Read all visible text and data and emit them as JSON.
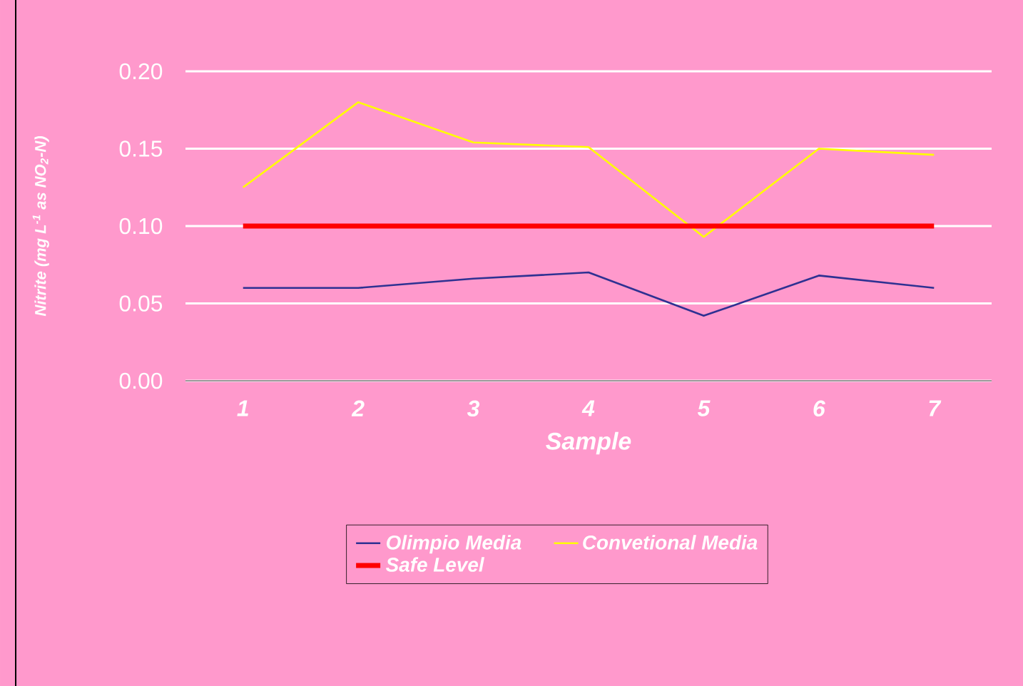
{
  "chart_data": {
    "type": "line",
    "xlabel": "Sample",
    "ylabel": "Nitrite (mg L$^{-1}$ as NO$_{2}$-N)",
    "categories": [
      "1",
      "2",
      "3",
      "4",
      "5",
      "6",
      "7"
    ],
    "series": [
      {
        "name": "Olimpio Media",
        "color": "#2e3192",
        "values": [
          0.06,
          0.06,
          0.066,
          0.07,
          0.042,
          0.068,
          0.06
        ]
      },
      {
        "name": "Convetional Media",
        "color": "#ffff00",
        "values": [
          0.125,
          0.18,
          0.154,
          0.151,
          0.093,
          0.15,
          0.146
        ]
      },
      {
        "name": "Safe Level",
        "color": "#ff0000",
        "values": [
          0.1,
          0.1,
          0.1,
          0.1,
          0.1,
          0.1,
          0.1
        ]
      }
    ],
    "ylim": [
      0,
      0.2
    ],
    "yticks": [
      {
        "value": 0,
        "label": "0.00"
      },
      {
        "value": 0.05,
        "label": "0.05"
      },
      {
        "value": 0.1,
        "label": "0.10"
      },
      {
        "value": 0.15,
        "label": "0.15"
      },
      {
        "value": 0.2,
        "label": "0.20"
      }
    ],
    "grid": "y",
    "legend": "bottom",
    "marker": "none",
    "line_style": "solid"
  }
}
